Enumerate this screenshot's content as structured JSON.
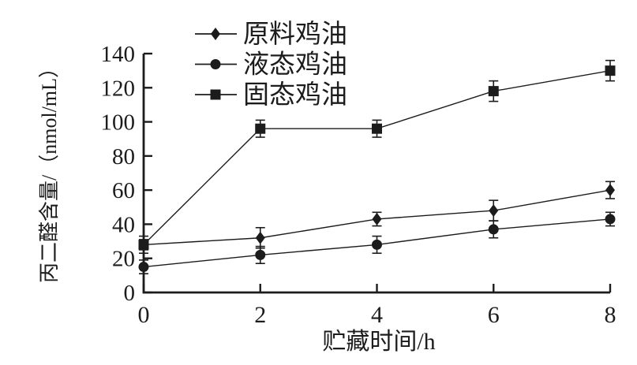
{
  "figure": {
    "background": "#ffffff",
    "ink": "#1c1c1c"
  },
  "chart_data": {
    "type": "line",
    "title": "",
    "xlabel": "贮藏时间/h",
    "ylabel": "丙二醛含量/（nmol/mL）",
    "x": [
      0,
      2,
      4,
      6,
      8
    ],
    "xlim": [
      0,
      8
    ],
    "ylim": [
      0,
      140
    ],
    "x_ticks": [
      0,
      2,
      4,
      6,
      8
    ],
    "y_ticks": [
      0,
      20,
      40,
      60,
      80,
      100,
      120,
      140
    ],
    "grid": false,
    "legend_position": "top-left-inside",
    "error_bars": true,
    "series": [
      {
        "name": "原料鸡油",
        "slug": "raw-chicken-oil",
        "marker": "diamond",
        "color": "#1c1c1c",
        "values": [
          28,
          32,
          43,
          48,
          60
        ],
        "errors": [
          3,
          6,
          4,
          6,
          5
        ]
      },
      {
        "name": "液态鸡油",
        "slug": "liquid-chicken-oil",
        "marker": "circle",
        "color": "#1c1c1c",
        "values": [
          15,
          22,
          28,
          37,
          43
        ],
        "errors": [
          4,
          5,
          5,
          5,
          4
        ]
      },
      {
        "name": "固态鸡油",
        "slug": "solid-chicken-oil",
        "marker": "square",
        "color": "#1c1c1c",
        "values": [
          28,
          96,
          96,
          118,
          130
        ],
        "errors": [
          5,
          5,
          5,
          6,
          6
        ]
      }
    ]
  }
}
